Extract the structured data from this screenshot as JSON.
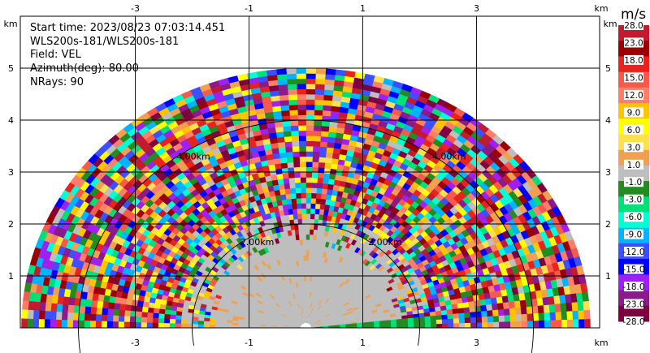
{
  "info": {
    "start_time": "Start time: 2023/08/23 07:03:14.451",
    "instrument": "WLS200s-181/WLS200s-181",
    "field": "Field: VEL",
    "azimuth": "Azimuth(deg): 80.00",
    "nrays": "NRays: 90"
  },
  "chart_data": {
    "type": "heatmap",
    "projection": "polar-rhi",
    "x_unit_label": "km",
    "y_unit_label": "km",
    "x_ticks": [
      "-3",
      "-1",
      "1",
      "3"
    ],
    "y_ticks": [
      "1",
      "2",
      "3",
      "4",
      "5"
    ],
    "xlim": [
      -5.0,
      5.0
    ],
    "ylim": [
      0,
      5.4
    ],
    "max_range_km": 5.0,
    "range_rings": [
      {
        "radius_km": 2.0,
        "label": "2.00km"
      },
      {
        "radius_km": 4.0,
        "label": "4.00km"
      }
    ],
    "grid": true,
    "colorbar": {
      "title": "m/s",
      "labels": [
        "28.0",
        "23.0",
        "18.0",
        "15.0",
        "12.0",
        "9.0",
        "6.0",
        "3.0",
        "1.0",
        "-1.0",
        "-3.0",
        "-6.0",
        "-9.0",
        "-12.0",
        "-15.0",
        "-18.0",
        "-23.0",
        "-28.0"
      ],
      "colors": [
        "#c21b2f",
        "#9b0000",
        "#e8221d",
        "#f55a4a",
        "#ff7e6a",
        "#ffc400",
        "#ffff00",
        "#ffe150",
        "#f0a050",
        "#bebebe",
        "#228b22",
        "#00e07a",
        "#00ffd7",
        "#00b4ff",
        "#3c50ff",
        "#0000ff",
        "#a020f0",
        "#8b1a8b",
        "#800040"
      ]
    },
    "regions": [
      {
        "from_km": 0.0,
        "to_km": 2.2,
        "dominant": "-1.0 to 1.0"
      },
      {
        "from_km": 2.2,
        "to_km": 5.0,
        "dominant": "mixed noise"
      }
    ]
  }
}
